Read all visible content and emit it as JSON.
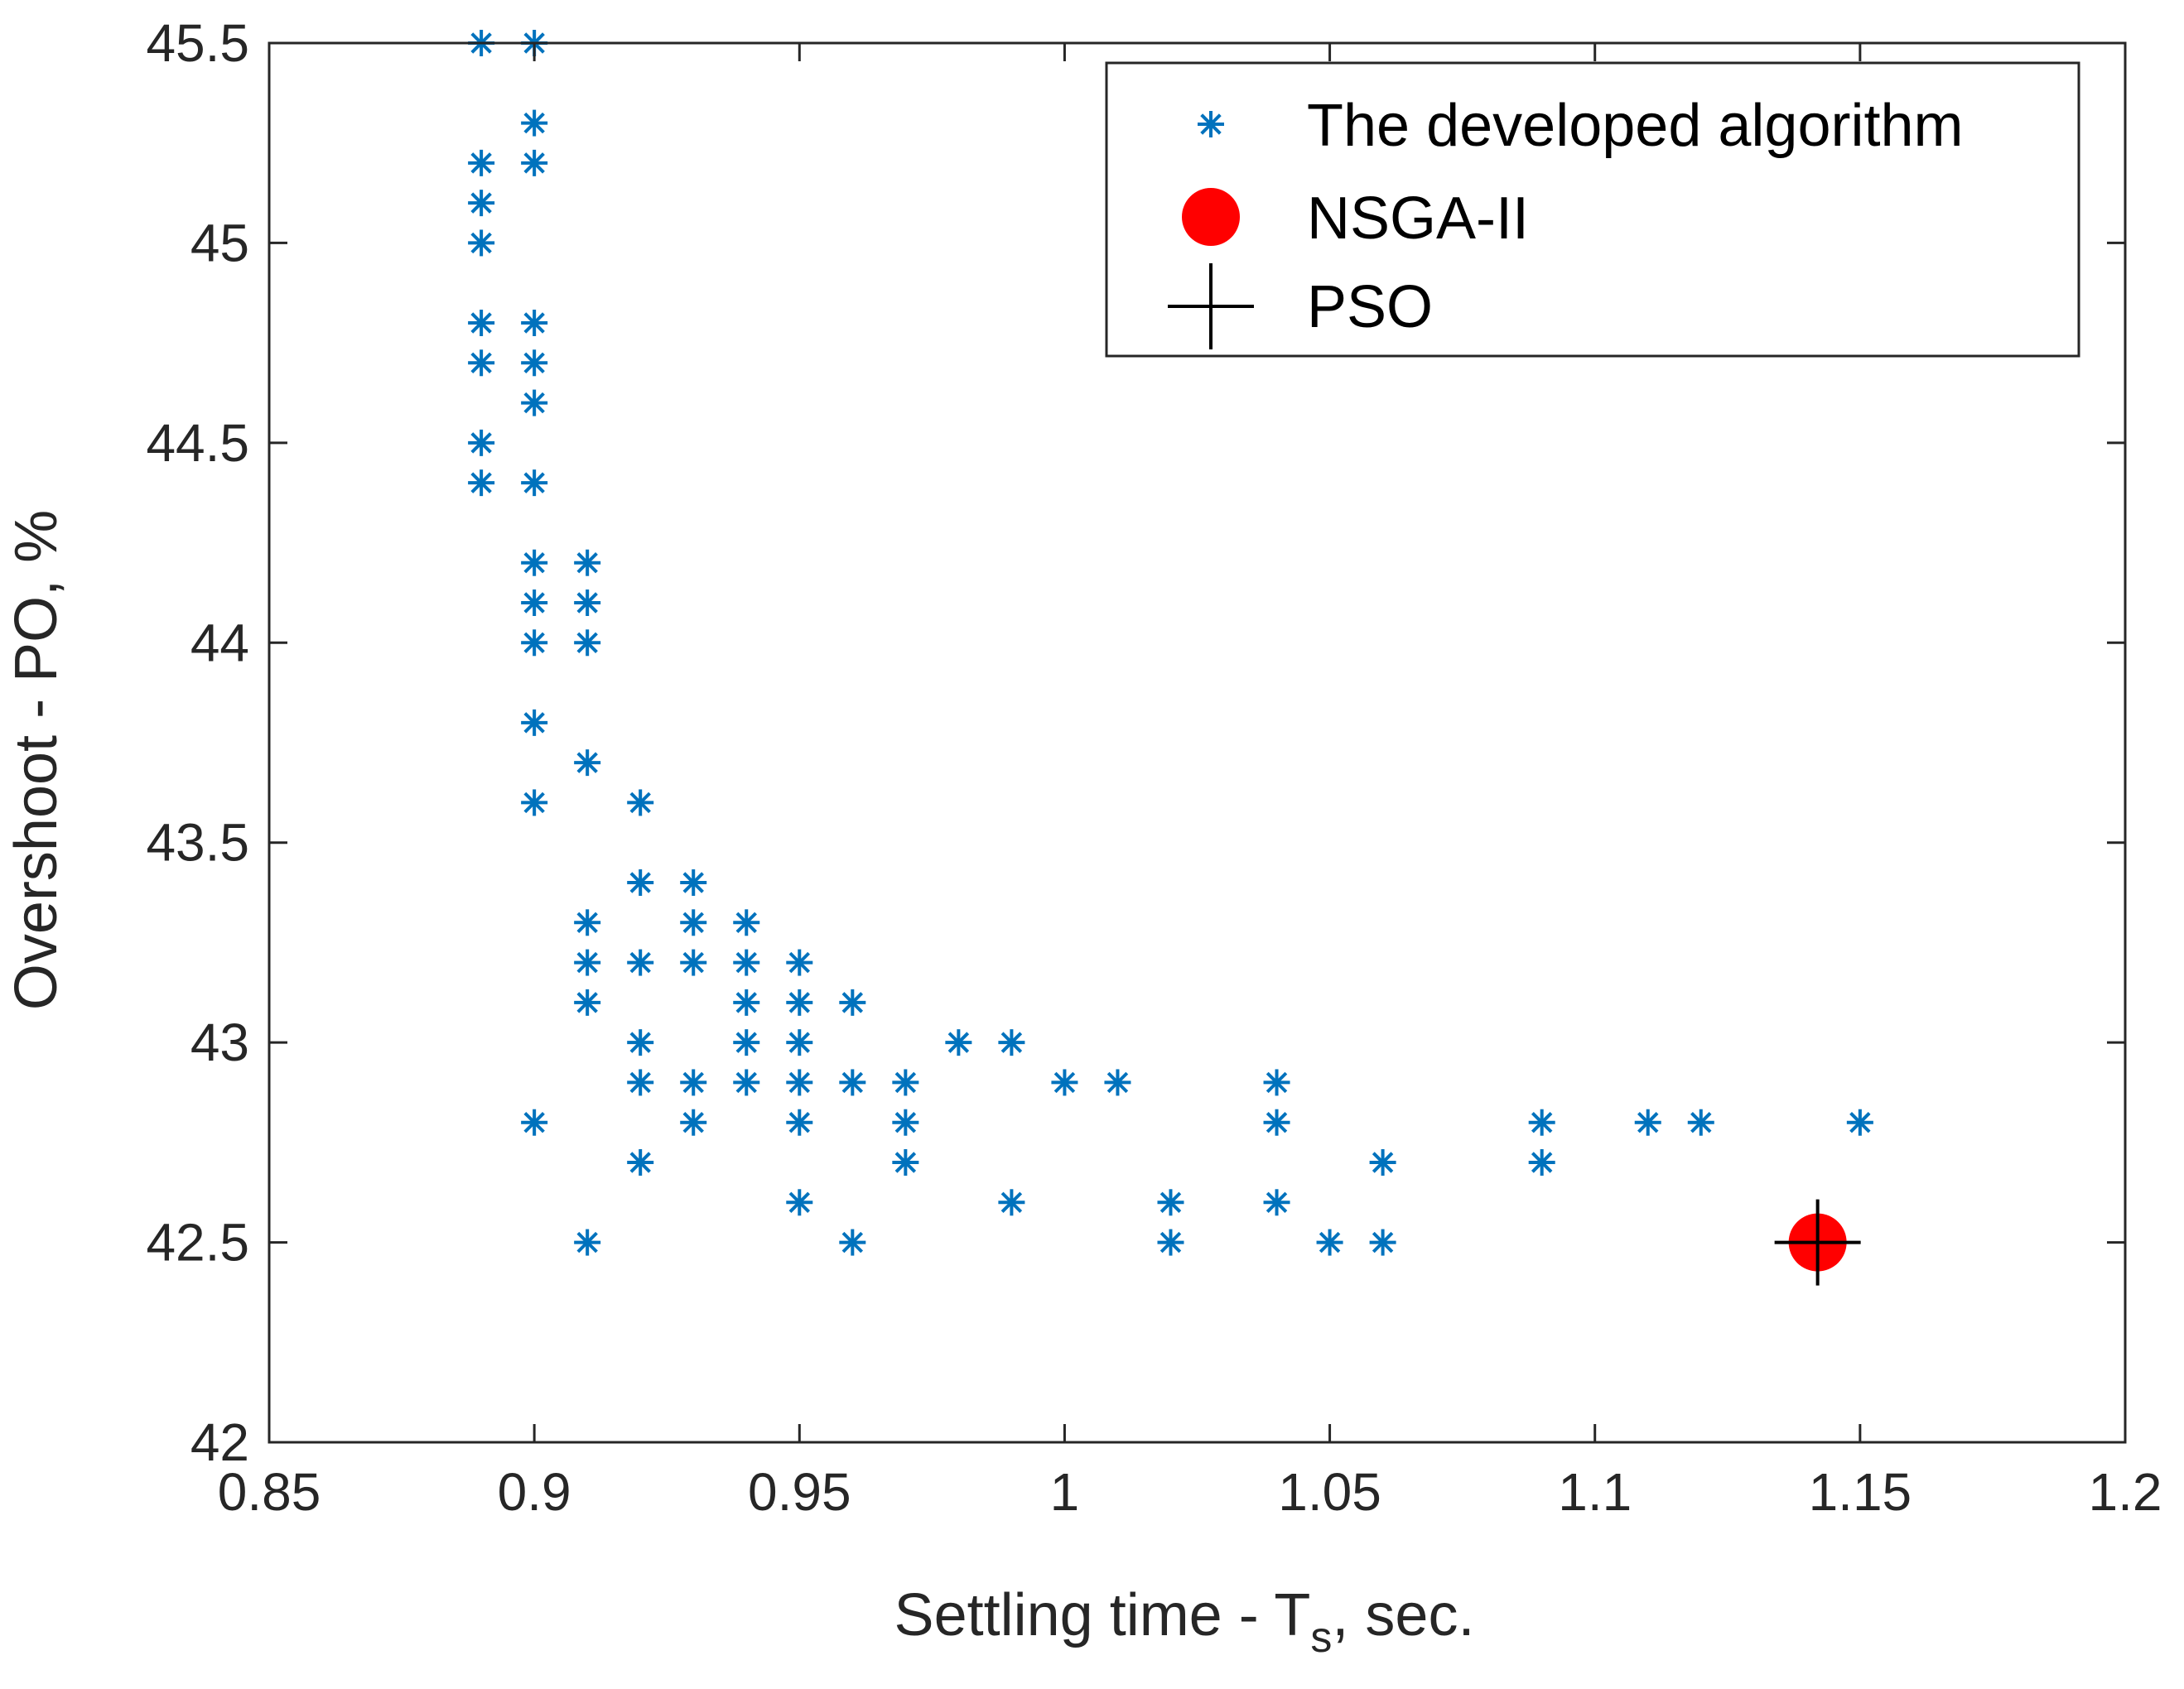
{
  "chart_data": {
    "type": "scatter",
    "xlabel_main": "Settling time - T",
    "xlabel_sub": "s",
    "xlabel_suffix": ", sec.",
    "ylabel": "Overshoot - PO, %",
    "xlim": [
      0.85,
      1.2
    ],
    "ylim": [
      42,
      45.5
    ],
    "x_ticks": [
      {
        "value": 0.85,
        "label": "0.85"
      },
      {
        "value": 0.9,
        "label": "0.9"
      },
      {
        "value": 0.95,
        "label": "0.95"
      },
      {
        "value": 1.0,
        "label": "1"
      },
      {
        "value": 1.05,
        "label": "1.05"
      },
      {
        "value": 1.1,
        "label": "1.1"
      },
      {
        "value": 1.15,
        "label": "1.15"
      },
      {
        "value": 1.2,
        "label": "1.2"
      }
    ],
    "y_ticks": [
      {
        "value": 42,
        "label": "42"
      },
      {
        "value": 42.5,
        "label": "42.5"
      },
      {
        "value": 43,
        "label": "43"
      },
      {
        "value": 43.5,
        "label": "43.5"
      },
      {
        "value": 44,
        "label": "44"
      },
      {
        "value": 44.5,
        "label": "44.5"
      },
      {
        "value": 45,
        "label": "45"
      },
      {
        "value": 45.5,
        "label": "45.5"
      }
    ],
    "grid": false,
    "legend_position": "top-right",
    "series": [
      {
        "name": "The developed algorithm",
        "marker": "asterisk",
        "color": "#0072BD",
        "points": [
          [
            0.89,
            45.5
          ],
          [
            0.89,
            45.2
          ],
          [
            0.89,
            45.1
          ],
          [
            0.89,
            45.0
          ],
          [
            0.89,
            44.8
          ],
          [
            0.89,
            44.7
          ],
          [
            0.89,
            44.5
          ],
          [
            0.89,
            44.4
          ],
          [
            0.9,
            45.5
          ],
          [
            0.9,
            45.3
          ],
          [
            0.9,
            45.2
          ],
          [
            0.9,
            44.8
          ],
          [
            0.9,
            44.7
          ],
          [
            0.9,
            44.6
          ],
          [
            0.9,
            44.4
          ],
          [
            0.9,
            44.2
          ],
          [
            0.9,
            44.1
          ],
          [
            0.9,
            44.0
          ],
          [
            0.9,
            43.8
          ],
          [
            0.9,
            43.6
          ],
          [
            0.9,
            42.8
          ],
          [
            0.91,
            44.2
          ],
          [
            0.91,
            44.1
          ],
          [
            0.91,
            44.0
          ],
          [
            0.91,
            43.7
          ],
          [
            0.91,
            43.3
          ],
          [
            0.91,
            43.2
          ],
          [
            0.91,
            43.1
          ],
          [
            0.91,
            42.5
          ],
          [
            0.92,
            43.6
          ],
          [
            0.92,
            43.4
          ],
          [
            0.92,
            43.2
          ],
          [
            0.92,
            43.0
          ],
          [
            0.92,
            42.9
          ],
          [
            0.92,
            42.7
          ],
          [
            0.93,
            43.4
          ],
          [
            0.93,
            43.3
          ],
          [
            0.93,
            43.2
          ],
          [
            0.93,
            42.9
          ],
          [
            0.93,
            42.8
          ],
          [
            0.94,
            43.3
          ],
          [
            0.94,
            43.2
          ],
          [
            0.94,
            43.1
          ],
          [
            0.94,
            43.0
          ],
          [
            0.94,
            42.9
          ],
          [
            0.95,
            43.2
          ],
          [
            0.95,
            43.1
          ],
          [
            0.95,
            43.0
          ],
          [
            0.95,
            42.9
          ],
          [
            0.95,
            42.8
          ],
          [
            0.95,
            42.6
          ],
          [
            0.96,
            43.1
          ],
          [
            0.96,
            42.9
          ],
          [
            0.96,
            42.5
          ],
          [
            0.97,
            42.9
          ],
          [
            0.97,
            42.8
          ],
          [
            0.97,
            42.7
          ],
          [
            0.98,
            43.0
          ],
          [
            0.99,
            43.0
          ],
          [
            0.99,
            42.6
          ],
          [
            1.0,
            42.9
          ],
          [
            1.01,
            42.9
          ],
          [
            1.02,
            42.6
          ],
          [
            1.02,
            42.5
          ],
          [
            1.04,
            42.9
          ],
          [
            1.04,
            42.8
          ],
          [
            1.04,
            42.6
          ],
          [
            1.05,
            42.5
          ],
          [
            1.06,
            42.7
          ],
          [
            1.06,
            42.5
          ],
          [
            1.09,
            42.8
          ],
          [
            1.09,
            42.7
          ],
          [
            1.11,
            42.8
          ],
          [
            1.12,
            42.8
          ],
          [
            1.15,
            42.8
          ]
        ]
      },
      {
        "name": "NSGA-II",
        "marker": "filled-circle",
        "color": "#FF0000",
        "points": [
          [
            1.142,
            42.5
          ]
        ]
      },
      {
        "name": "PSO",
        "marker": "plus",
        "color": "#000000",
        "points": [
          [
            1.142,
            42.5
          ]
        ]
      }
    ]
  }
}
